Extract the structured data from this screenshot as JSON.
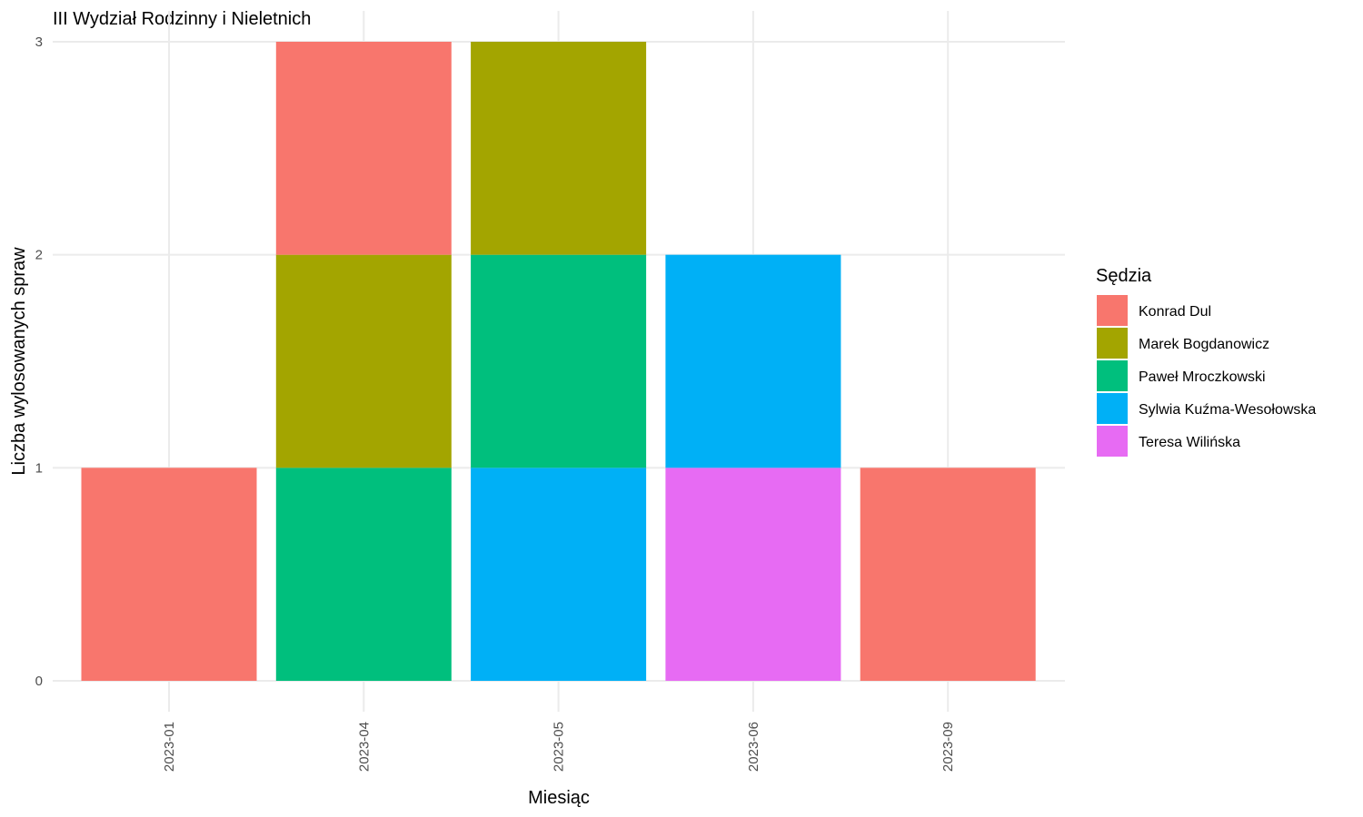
{
  "chart_data": {
    "type": "bar",
    "stacked": true,
    "title": "III Wydział Rodzinny i Nieletnich",
    "xlabel": "Miesiąc",
    "ylabel": "Liczba wylosowanych spraw",
    "categories": [
      "2023-01",
      "2023-04",
      "2023-05",
      "2023-06",
      "2023-09"
    ],
    "ylim": [
      0,
      3
    ],
    "yticks": [
      0,
      1,
      2,
      3
    ],
    "grid": true,
    "legend": {
      "title": "Sędzia",
      "position": "right"
    },
    "series": [
      {
        "name": "Konrad Dul",
        "color": "#F8766D",
        "values": [
          1,
          1,
          0,
          0,
          1
        ]
      },
      {
        "name": "Marek Bogdanowicz",
        "color": "#A3A500",
        "values": [
          0,
          1,
          1,
          0,
          0
        ]
      },
      {
        "name": "Paweł Mroczkowski",
        "color": "#00BF7D",
        "values": [
          0,
          1,
          1,
          0,
          0
        ]
      },
      {
        "name": "Sylwia Kuźma-Wesołowska",
        "color": "#00B0F6",
        "values": [
          0,
          0,
          1,
          1,
          0
        ]
      },
      {
        "name": "Teresa Wilińska",
        "color": "#E76BF3",
        "values": [
          0,
          0,
          0,
          1,
          0
        ]
      }
    ]
  }
}
